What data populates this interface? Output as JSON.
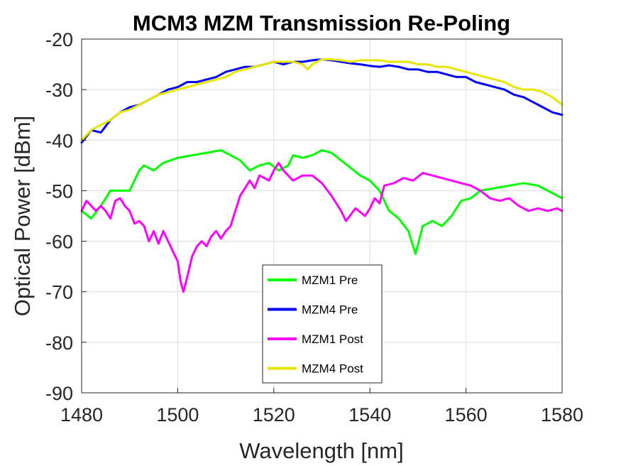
{
  "chart_data": {
    "type": "line",
    "title": "MCM3 MZM Transmission Re-Poling",
    "xlabel": "Wavelength [nm]",
    "ylabel": "Optical Power [dBm]",
    "xlim": [
      1480,
      1580
    ],
    "ylim": [
      -90,
      -20
    ],
    "xticks": [
      "1480",
      "1500",
      "1520",
      "1540",
      "1560",
      "1580"
    ],
    "yticks": [
      "-20",
      "-30",
      "-40",
      "-50",
      "-60",
      "-70",
      "-80",
      "-90"
    ],
    "grid": true,
    "legend_position": "lower-center",
    "series": [
      {
        "name": "MZM1 Pre",
        "color": "#00ff00",
        "x": [
          1480,
          1482,
          1484,
          1486,
          1488,
          1490,
          1492,
          1493,
          1495,
          1497,
          1500,
          1503,
          1506,
          1509,
          1511,
          1513,
          1515,
          1517,
          1519,
          1521,
          1523,
          1524,
          1526,
          1528,
          1530,
          1532,
          1534,
          1536,
          1538,
          1540,
          1542,
          1544,
          1546,
          1548,
          1549.5,
          1551,
          1553,
          1555,
          1557,
          1559,
          1561,
          1563,
          1566,
          1569,
          1572,
          1575,
          1578,
          1580
        ],
        "values": [
          -54,
          -55.5,
          -53,
          -50,
          -50,
          -50,
          -46,
          -45,
          -46,
          -44.5,
          -43.5,
          -43,
          -42.5,
          -42,
          -43,
          -44,
          -46,
          -45,
          -44.5,
          -46,
          -45,
          -43,
          -43.5,
          -43,
          -42,
          -42.5,
          -44,
          -45.5,
          -47,
          -48,
          -50,
          -54,
          -55.5,
          -58,
          -62.5,
          -57,
          -56,
          -57,
          -55,
          -52,
          -51.5,
          -50,
          -49.5,
          -49,
          -48.5,
          -49,
          -50.5,
          -51.5
        ]
      },
      {
        "name": "MZM4 Pre",
        "color": "#0000ff",
        "x": [
          1480,
          1482,
          1484,
          1486,
          1488,
          1490,
          1492,
          1494,
          1496,
          1498,
          1500,
          1502,
          1504,
          1506,
          1508,
          1510,
          1512,
          1514,
          1516,
          1518,
          1520,
          1522,
          1524,
          1526,
          1528,
          1530,
          1532,
          1534,
          1536,
          1538,
          1540,
          1542,
          1544,
          1546,
          1548,
          1550,
          1552,
          1554,
          1556,
          1558,
          1560,
          1562,
          1564,
          1566,
          1568,
          1570,
          1572,
          1574,
          1576,
          1578,
          1580
        ],
        "values": [
          -40.5,
          -38,
          -38.5,
          -36,
          -34.5,
          -33.5,
          -33,
          -32,
          -31,
          -30,
          -29.5,
          -28.5,
          -28.5,
          -28,
          -27.5,
          -26.5,
          -26,
          -25.5,
          -25.5,
          -25,
          -24.5,
          -25,
          -24.5,
          -24.5,
          -24.2,
          -24,
          -24.2,
          -24.5,
          -24.8,
          -25,
          -25.3,
          -25.5,
          -25.2,
          -25.5,
          -26,
          -26,
          -26.5,
          -26.5,
          -27,
          -27.5,
          -27.5,
          -28.5,
          -29,
          -29.5,
          -30,
          -31,
          -31.5,
          -32.5,
          -33.5,
          -34.5,
          -35
        ]
      },
      {
        "name": "MZM1 Post",
        "color": "#ff00ff",
        "x": [
          1480,
          1481,
          1482,
          1483,
          1484,
          1485,
          1486,
          1487,
          1488,
          1489,
          1490,
          1491,
          1492,
          1493,
          1494,
          1495,
          1496,
          1497,
          1498,
          1499,
          1500,
          1500.6,
          1501.2,
          1502,
          1503,
          1504,
          1505,
          1506,
          1507,
          1508,
          1509,
          1510,
          1511,
          1512,
          1513,
          1514,
          1515,
          1516,
          1517,
          1518,
          1519,
          1520,
          1521,
          1522,
          1524,
          1526,
          1528,
          1530,
          1532,
          1534,
          1535,
          1537,
          1539,
          1540,
          1541,
          1542,
          1543,
          1545,
          1547,
          1549,
          1551,
          1553,
          1555,
          1557,
          1559,
          1561,
          1563,
          1565,
          1567,
          1569,
          1571,
          1573,
          1575,
          1577,
          1579,
          1580
        ],
        "values": [
          -54,
          -52,
          -53,
          -54,
          -53,
          -54,
          -55.5,
          -52,
          -51.5,
          -53,
          -54,
          -56.5,
          -56,
          -57,
          -60,
          -58,
          -60.5,
          -58,
          -60,
          -62,
          -64,
          -68,
          -70,
          -67,
          -63,
          -61,
          -60,
          -61,
          -59,
          -58,
          -59.5,
          -58,
          -57,
          -54,
          -51,
          -49.5,
          -48,
          -49.5,
          -47,
          -47.5,
          -48,
          -46,
          -44.5,
          -46,
          -48,
          -47,
          -47,
          -48.5,
          -51,
          -54,
          -56,
          -53.5,
          -55,
          -53.5,
          -51.5,
          -52.5,
          -49,
          -48.5,
          -47.5,
          -48,
          -46.5,
          -47,
          -47.5,
          -48,
          -48.5,
          -49,
          -50,
          -51.5,
          -52,
          -51.5,
          -53,
          -54,
          -53.5,
          -54,
          -53.5,
          -54
        ]
      },
      {
        "name": "MZM4 Post",
        "color": "#e6e600",
        "x": [
          1480,
          1482,
          1484,
          1486,
          1488,
          1490,
          1492,
          1494,
          1496,
          1498,
          1500,
          1502,
          1504,
          1506,
          1508,
          1510,
          1512,
          1514,
          1516,
          1518,
          1520,
          1522,
          1524,
          1526,
          1527,
          1528,
          1530,
          1532,
          1534,
          1536,
          1538,
          1540,
          1542,
          1544,
          1546,
          1548,
          1550,
          1552,
          1554,
          1556,
          1558,
          1560,
          1562,
          1564,
          1566,
          1568,
          1570,
          1572,
          1574,
          1576,
          1578,
          1580
        ],
        "values": [
          -40,
          -38,
          -37,
          -36,
          -34.5,
          -34,
          -33,
          -32,
          -31,
          -30.5,
          -30,
          -29.5,
          -29,
          -28.5,
          -28,
          -27.5,
          -26.5,
          -26,
          -25.5,
          -25,
          -24.5,
          -24.5,
          -24.5,
          -25,
          -26,
          -25,
          -24,
          -24,
          -24.2,
          -24.5,
          -24.2,
          -24.2,
          -24.2,
          -24.5,
          -24.5,
          -24.5,
          -25,
          -25,
          -25.5,
          -25.5,
          -26,
          -26.5,
          -27,
          -27.5,
          -28,
          -28.5,
          -29.5,
          -30,
          -30,
          -30.5,
          -31.5,
          -33
        ]
      }
    ]
  }
}
